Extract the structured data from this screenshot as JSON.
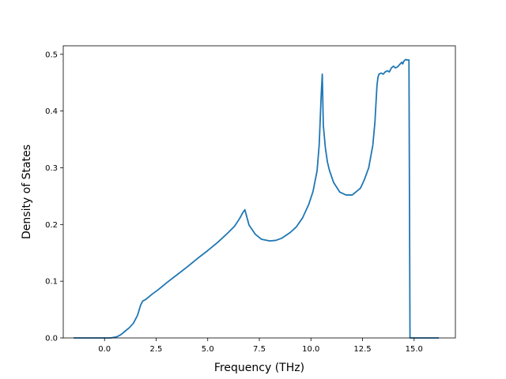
{
  "chart_data": {
    "type": "line",
    "title": "",
    "xlabel": "Frequency (THz)",
    "ylabel": "Density of States",
    "xlim": [
      -2.0,
      17.0
    ],
    "ylim": [
      0.0,
      0.515
    ],
    "xticks": [
      0.0,
      2.5,
      5.0,
      7.5,
      10.0,
      12.5,
      15.0
    ],
    "xtick_labels": [
      "0.0",
      "2.5",
      "5.0",
      "7.5",
      "10.0",
      "12.5",
      "15.0"
    ],
    "yticks": [
      0.0,
      0.1,
      0.2,
      0.3,
      0.4,
      0.5
    ],
    "ytick_labels": [
      "0.0",
      "0.1",
      "0.2",
      "0.3",
      "0.4",
      "0.5"
    ],
    "grid": false,
    "legend": false,
    "line_color": "#1f77b4",
    "series": [
      {
        "x": [
          -1.5,
          -1.0,
          -0.5,
          0.0,
          0.3,
          0.6,
          0.8,
          1.0,
          1.2,
          1.4,
          1.6,
          1.75,
          1.85,
          2.0,
          2.3,
          2.6,
          3.0,
          3.5,
          4.0,
          4.5,
          5.0,
          5.5,
          6.0,
          6.3,
          6.5,
          6.6,
          6.7,
          6.8,
          7.0,
          7.3,
          7.6,
          8.0,
          8.3,
          8.6,
          9.0,
          9.3,
          9.6,
          9.9,
          10.1,
          10.3,
          10.4,
          10.5,
          10.55,
          10.6,
          10.7,
          10.8,
          10.9,
          11.1,
          11.4,
          11.7,
          12.0,
          12.2,
          12.4,
          12.6,
          12.8,
          13.0,
          13.1,
          13.2,
          13.25,
          13.3,
          13.4,
          13.5,
          13.6,
          13.7,
          13.8,
          13.9,
          14.0,
          14.1,
          14.2,
          14.3,
          14.4,
          14.45,
          14.5,
          14.6,
          14.65,
          14.75,
          14.8,
          15.0,
          15.5,
          16.2
        ],
        "y": [
          0.0,
          0.0,
          0.0,
          0.0,
          0.0,
          0.002,
          0.006,
          0.012,
          0.018,
          0.026,
          0.04,
          0.058,
          0.065,
          0.068,
          0.077,
          0.085,
          0.097,
          0.111,
          0.125,
          0.14,
          0.154,
          0.169,
          0.186,
          0.197,
          0.208,
          0.214,
          0.221,
          0.226,
          0.199,
          0.183,
          0.174,
          0.171,
          0.172,
          0.176,
          0.186,
          0.196,
          0.212,
          0.236,
          0.258,
          0.295,
          0.34,
          0.43,
          0.465,
          0.375,
          0.335,
          0.31,
          0.295,
          0.274,
          0.257,
          0.252,
          0.252,
          0.258,
          0.264,
          0.28,
          0.3,
          0.34,
          0.38,
          0.445,
          0.46,
          0.465,
          0.467,
          0.465,
          0.469,
          0.471,
          0.469,
          0.476,
          0.479,
          0.476,
          0.478,
          0.482,
          0.486,
          0.483,
          0.488,
          0.491,
          0.49,
          0.49,
          0.0,
          0.0,
          0.0,
          0.0
        ]
      }
    ]
  }
}
